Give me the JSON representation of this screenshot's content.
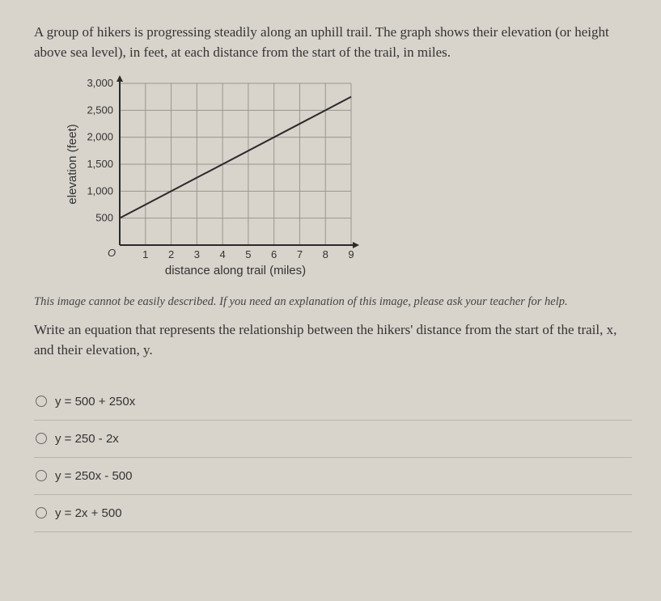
{
  "question": {
    "intro": "A group of hikers is progressing steadily along an uphill trail.  The graph shows their elevation (or height above sea level), in feet, at each distance from the start of the trail, in miles.",
    "caption": "This image cannot be easily described. If you need an explanation of this image, please ask your teacher for help.",
    "prompt": "Write an equation that represents the relationship between the hikers' distance from the start of the trail, x, and their elevation, y."
  },
  "chart": {
    "type": "line",
    "xlabel": "distance along trail (miles)",
    "ylabel": "elevation (feet)",
    "xlim": [
      0,
      9
    ],
    "ylim": [
      0,
      3000
    ],
    "xticks": [
      1,
      2,
      3,
      4,
      5,
      6,
      7,
      8,
      9
    ],
    "yticks": [
      500,
      1000,
      1500,
      2000,
      2500,
      3000
    ],
    "ytick_labels": [
      "500",
      "1,000",
      "1,500",
      "2,000",
      "2,500",
      "3,000"
    ],
    "grid_color": "#9a968c",
    "axis_color": "#2a2a2a",
    "line_color": "#2a2a2a",
    "background": "#d8d4cc",
    "line_width": 2,
    "data_x": [
      0,
      9
    ],
    "data_y": [
      500,
      2750
    ],
    "origin_label": "O"
  },
  "options": [
    {
      "label": "y = 500 + 250x"
    },
    {
      "label": "y = 250 - 2x"
    },
    {
      "label": "y = 250x - 500"
    },
    {
      "label": "y = 2x + 500"
    }
  ]
}
